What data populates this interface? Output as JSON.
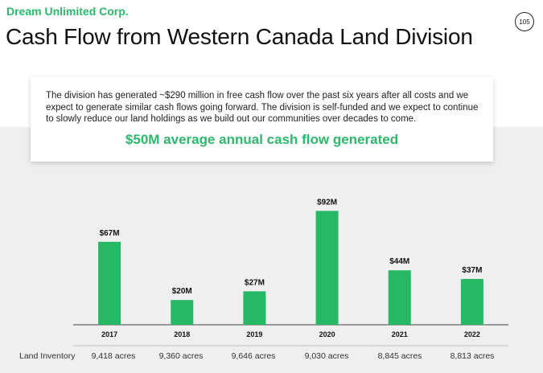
{
  "header": {
    "company": "Dream Unlimited Corp.",
    "title": "Cash Flow from Western Canada Land Division",
    "page_number": "105"
  },
  "callout": {
    "text": "The division has generated ~$290 million in free cash flow over the past six years after all costs and we expect to generate similar cash flows going forward. The division is self-funded and we expect to continue to slowly reduce our land holdings as we build out our communities over decades to come.",
    "highlight": "$50M average annual cash flow generated"
  },
  "colors": {
    "accent": "#2db86c",
    "bar": "#27b866",
    "background_band": "#efefef"
  },
  "chart_data": {
    "type": "bar",
    "categories": [
      "2017",
      "2018",
      "2019",
      "2020",
      "2021",
      "2022"
    ],
    "values": [
      67,
      20,
      27,
      92,
      44,
      37
    ],
    "value_labels": [
      "$67M",
      "$20M",
      "$27M",
      "$92M",
      "$44M",
      "$37M"
    ],
    "title": "",
    "xlabel": "",
    "ylabel": "",
    "ylim": [
      0,
      100
    ],
    "grid": false
  },
  "inventory": {
    "label": "Land Inventory",
    "values": [
      "9,418 acres",
      "9,360 acres",
      "9,646 acres",
      "9,030 acres",
      "8,845 acres",
      "8,813 acres"
    ]
  }
}
